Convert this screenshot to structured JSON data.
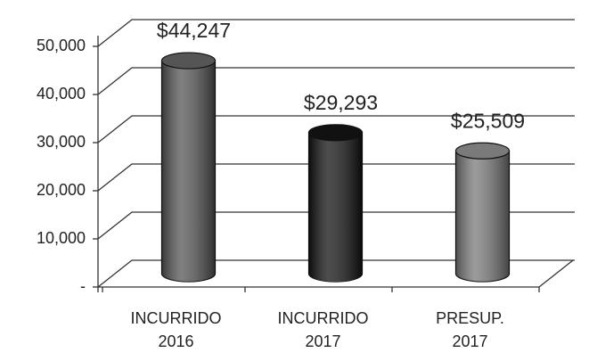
{
  "chart_data": {
    "type": "cylinder",
    "categories": [
      [
        "INCURRIDO",
        "2016"
      ],
      [
        "INCURRIDO",
        "2017"
      ],
      [
        "PRESUP.",
        "2017"
      ]
    ],
    "values": [
      44247,
      29293,
      25509
    ],
    "value_labels": [
      "$44,247",
      "$29,293",
      "$25,509"
    ],
    "colors": [
      "#555555",
      "#111111",
      "#7a7a7a"
    ],
    "ylim": [
      0,
      50000
    ],
    "yticks": [
      {
        "value": 0,
        "label": "-"
      },
      {
        "value": 10000,
        "label": "10,000"
      },
      {
        "value": 20000,
        "label": "20,000"
      },
      {
        "value": 30000,
        "label": "30,000"
      },
      {
        "value": 40000,
        "label": "40,000"
      },
      {
        "value": 50000,
        "label": "50,000"
      }
    ],
    "grid": true
  }
}
